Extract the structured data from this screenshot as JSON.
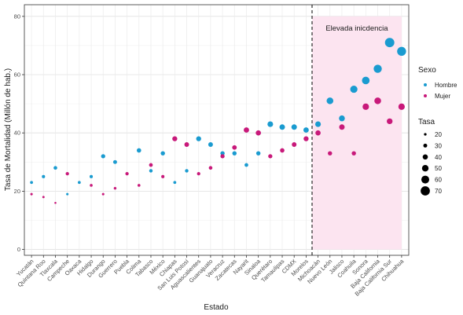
{
  "chart_data": {
    "type": "scatter",
    "title": "",
    "xlabel": "Estado",
    "ylabel": "Tasa de Mortalidad   (Millón de hab.)",
    "ylim": [
      -2,
      84
    ],
    "yticks": [
      0,
      20,
      40,
      60,
      80
    ],
    "grid": true,
    "categories": [
      "Yucatán",
      "Quintana Roo",
      "Tlaxcala",
      "Campeche",
      "Oaxaca",
      "Hidalgo",
      "Durango",
      "Guerrero",
      "Puebla",
      "Colima",
      "Tabasco",
      "México",
      "Chiapas",
      "San Luis Potosí",
      "Aguascalientes",
      "Guanajuato",
      "Veracruz",
      "Zacatecas",
      "Nayarit",
      "Sinaloa",
      "Querétaro",
      "Tamaulipas",
      "CDMX",
      "Morelos",
      "Michoacán",
      "Nuevo León",
      "Jalisco",
      "Coahuila",
      "Sonora",
      "Baja California",
      "Baja California Sur",
      "Chihuahua"
    ],
    "series": [
      {
        "name": "Hombre",
        "color": "#1a9bd0",
        "values": [
          23,
          25,
          28,
          19,
          23,
          25,
          32,
          30,
          null,
          34,
          27,
          33,
          23,
          27,
          38,
          36,
          33,
          33,
          29,
          33,
          43,
          42,
          42,
          41,
          43,
          51,
          45,
          55,
          58,
          62,
          71,
          68
        ]
      },
      {
        "name": "Mujer",
        "color": "#c8197a",
        "values": [
          19,
          18,
          16,
          26,
          null,
          22,
          19,
          21,
          26,
          22,
          29,
          25,
          38,
          36,
          26,
          28,
          32,
          35,
          41,
          40,
          32,
          34,
          36,
          38,
          40,
          33,
          42,
          33,
          49,
          51,
          44,
          49
        ]
      }
    ],
    "legend": {
      "position": "right",
      "color_title": "Sexo",
      "size_title": "Tasa",
      "size_values": [
        20,
        30,
        40,
        50,
        60,
        70
      ]
    },
    "threshold_index": 23.5,
    "highlight": {
      "from_index": 24,
      "to_index": 31,
      "label": "Elevada inicdencia",
      "color": "#fce4f0"
    }
  }
}
